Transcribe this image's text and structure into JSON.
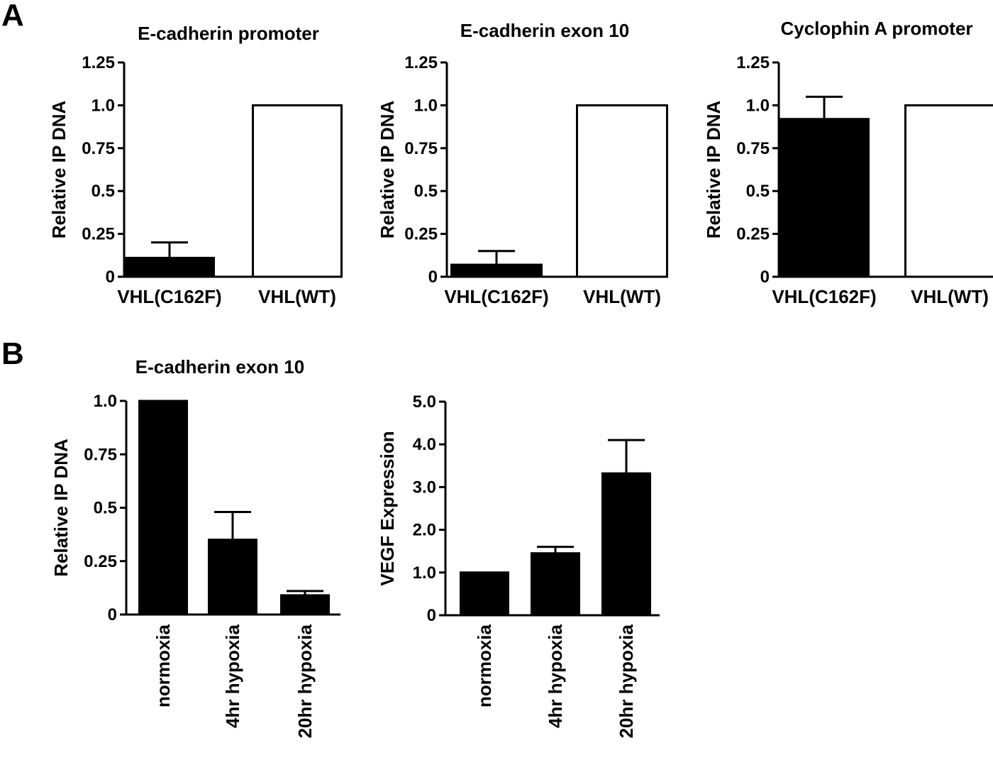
{
  "panels": {
    "a": "A",
    "b": "B"
  },
  "chart_data": [
    {
      "type": "bar",
      "panel": "A",
      "title": "E-cadherin promoter",
      "ylabel": "Relative IP DNA",
      "xlabel": "",
      "ylim": [
        0,
        1.25
      ],
      "yticks": [
        "0",
        "0.25",
        "0.5",
        "0.75",
        "1.0",
        "1.25"
      ],
      "categories": [
        "VHL(C162F)",
        "VHL(WT)"
      ],
      "values": [
        0.11,
        1.0
      ],
      "errors": [
        0.09,
        0
      ],
      "fills": [
        "#000000",
        "#ffffff"
      ],
      "label_orientation": "horizontal"
    },
    {
      "type": "bar",
      "panel": "A",
      "title": "E-cadherin exon 10",
      "ylabel": "Relative IP DNA",
      "xlabel": "",
      "ylim": [
        0,
        1.25
      ],
      "yticks": [
        "0",
        "0.25",
        "0.5",
        "0.75",
        "1.0",
        "1.25"
      ],
      "categories": [
        "VHL(C162F)",
        "VHL(WT)"
      ],
      "values": [
        0.07,
        1.0
      ],
      "errors": [
        0.08,
        0
      ],
      "fills": [
        "#000000",
        "#ffffff"
      ],
      "label_orientation": "horizontal"
    },
    {
      "type": "bar",
      "panel": "A",
      "title": "Cyclophin A promoter",
      "ylabel": "Relative IP DNA",
      "xlabel": "",
      "ylim": [
        0,
        1.25
      ],
      "yticks": [
        "0",
        "0.25",
        "0.5",
        "0.75",
        "1.0",
        "1.25"
      ],
      "categories": [
        "VHL(C162F)",
        "VHL(WT)"
      ],
      "values": [
        0.92,
        1.0
      ],
      "errors": [
        0.13,
        0
      ],
      "fills": [
        "#000000",
        "#ffffff"
      ],
      "label_orientation": "horizontal"
    },
    {
      "type": "bar",
      "panel": "B",
      "title": "E-cadherin exon 10",
      "ylabel": "Relative IP DNA",
      "xlabel": "",
      "ylim": [
        0,
        1.0
      ],
      "yticks": [
        "0",
        "0.25",
        "0.5",
        "0.75",
        "1.0"
      ],
      "categories": [
        "normoxia",
        "4hr hypoxia",
        "20hr hypoxia"
      ],
      "values": [
        1.0,
        0.35,
        0.09
      ],
      "errors": [
        0,
        0.13,
        0.02
      ],
      "fills": [
        "#000000",
        "#000000",
        "#000000"
      ],
      "label_orientation": "vertical"
    },
    {
      "type": "bar",
      "panel": "B",
      "title": "",
      "ylabel": "VEGF Expression",
      "xlabel": "",
      "ylim": [
        0,
        5.0
      ],
      "yticks": [
        "0",
        "1.0",
        "2.0",
        "3.0",
        "4.0",
        "5.0"
      ],
      "categories": [
        "normoxia",
        "4hr hypoxia",
        "20hr hypoxia"
      ],
      "values": [
        1.0,
        1.45,
        3.32
      ],
      "errors": [
        0,
        0.15,
        0.78
      ],
      "fills": [
        "#000000",
        "#000000",
        "#000000"
      ],
      "label_orientation": "vertical"
    }
  ]
}
